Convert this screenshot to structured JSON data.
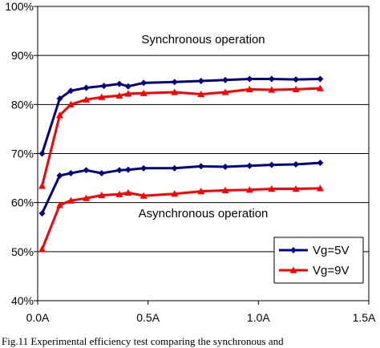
{
  "caption": "Fig.11 Experimental efficiency test comparing the synchronous and",
  "chart_data": {
    "type": "line",
    "xlabel": "",
    "ylabel": "",
    "xlim": [
      0,
      1.5
    ],
    "ylim": [
      40,
      100
    ],
    "x_ticks": [
      {
        "value": 0.0,
        "label": "0.0A"
      },
      {
        "value": 0.5,
        "label": "0.5A"
      },
      {
        "value": 1.0,
        "label": "1.0A"
      },
      {
        "value": 1.5,
        "label": "1.5A"
      }
    ],
    "y_ticks": [
      {
        "value": 40,
        "label": "40%"
      },
      {
        "value": 50,
        "label": "50%"
      },
      {
        "value": 60,
        "label": "60%"
      },
      {
        "value": 70,
        "label": "70%"
      },
      {
        "value": 80,
        "label": "80%"
      },
      {
        "value": 90,
        "label": "90%"
      },
      {
        "value": 100,
        "label": "100%"
      }
    ],
    "grid": "horizontal",
    "annotations": [
      {
        "text": "Synchronous operation",
        "x": 0.75,
        "y": 92.5
      },
      {
        "text": "Asynchronous operation",
        "x": 0.75,
        "y": 57.0
      }
    ],
    "legend": {
      "position": "bottom-right",
      "entries": [
        {
          "name": "Vg=5V",
          "color": "#000080",
          "marker": "diamond"
        },
        {
          "name": "Vg=9V",
          "color": "#ff0000",
          "marker": "triangle"
        }
      ]
    },
    "series": [
      {
        "name": "Vg=5V",
        "group": "synchronous",
        "color": "#000080",
        "marker": "diamond",
        "x": [
          0.02,
          0.1,
          0.15,
          0.22,
          0.3,
          0.37,
          0.41,
          0.48,
          0.62,
          0.74,
          0.85,
          0.96,
          1.06,
          1.17,
          1.28
        ],
        "y": [
          70.0,
          81.2,
          82.8,
          83.4,
          83.8,
          84.2,
          83.7,
          84.4,
          84.6,
          84.8,
          85.0,
          85.2,
          85.2,
          85.1,
          85.2
        ]
      },
      {
        "name": "Vg=5V",
        "group": "asynchronous",
        "color": "#000080",
        "marker": "diamond",
        "x": [
          0.02,
          0.1,
          0.15,
          0.22,
          0.29,
          0.37,
          0.41,
          0.48,
          0.62,
          0.74,
          0.85,
          0.96,
          1.06,
          1.17,
          1.28
        ],
        "y": [
          57.8,
          65.5,
          66.0,
          66.6,
          66.0,
          66.6,
          66.7,
          67.0,
          67.0,
          67.4,
          67.3,
          67.5,
          67.7,
          67.8,
          68.1
        ]
      },
      {
        "name": "Vg=9V",
        "group": "synchronous",
        "color": "#ff0000",
        "marker": "triangle",
        "x": [
          0.02,
          0.1,
          0.15,
          0.22,
          0.29,
          0.37,
          0.41,
          0.48,
          0.62,
          0.74,
          0.85,
          0.96,
          1.06,
          1.17,
          1.28
        ],
        "y": [
          63.4,
          77.8,
          80.0,
          81.0,
          81.5,
          81.8,
          82.2,
          82.3,
          82.5,
          82.1,
          82.5,
          83.1,
          83.0,
          83.1,
          83.3
        ]
      },
      {
        "name": "Vg=9V",
        "group": "asynchronous",
        "color": "#ff0000",
        "marker": "triangle",
        "x": [
          0.02,
          0.1,
          0.15,
          0.22,
          0.29,
          0.37,
          0.41,
          0.48,
          0.62,
          0.74,
          0.85,
          0.96,
          1.06,
          1.17,
          1.28
        ],
        "y": [
          50.5,
          59.5,
          60.4,
          60.9,
          61.5,
          61.7,
          62.0,
          61.4,
          61.8,
          62.3,
          62.5,
          62.6,
          62.8,
          62.8,
          62.9
        ]
      }
    ]
  }
}
